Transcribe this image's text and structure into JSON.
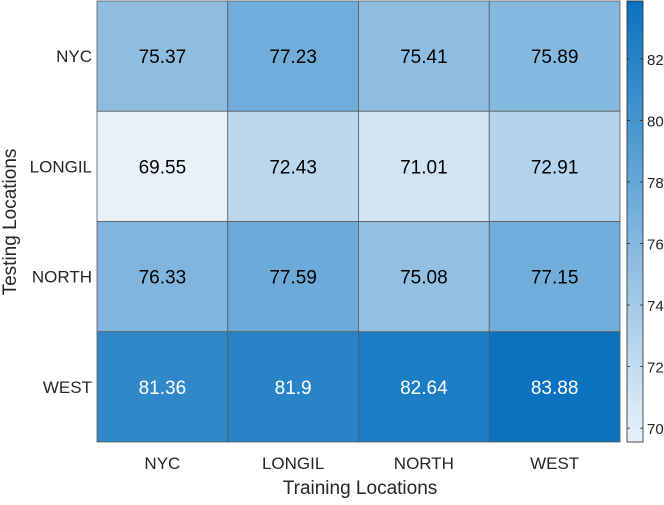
{
  "chart_data": {
    "type": "heatmap",
    "x_categories": [
      "NYC",
      "LONGIL",
      "NORTH",
      "WEST"
    ],
    "y_categories": [
      "NYC",
      "LONGIL",
      "NORTH",
      "WEST"
    ],
    "values": [
      [
        75.37,
        77.23,
        75.41,
        75.89
      ],
      [
        69.55,
        72.43,
        71.01,
        72.91
      ],
      [
        76.33,
        77.59,
        75.08,
        77.15
      ],
      [
        81.36,
        81.9,
        82.64,
        83.88
      ]
    ],
    "cell_labels": [
      [
        "75.37",
        "77.23",
        "75.41",
        "75.89"
      ],
      [
        "69.55",
        "72.43",
        "71.01",
        "72.91"
      ],
      [
        "76.33",
        "77.59",
        "75.08",
        "77.15"
      ],
      [
        "81.36",
        "81.9",
        "82.64",
        "83.88"
      ]
    ],
    "xlabel": "Training Locations",
    "ylabel": "Testing Locations",
    "colorbar": {
      "range": [
        69.55,
        83.88
      ],
      "ticks": [
        70,
        72,
        74,
        76,
        78,
        80,
        82
      ],
      "tick_labels": [
        "70",
        "72",
        "74",
        "76",
        "78",
        "80",
        "82"
      ]
    },
    "colormap": {
      "low": "#e8f1fa",
      "high": "#0a72bf"
    },
    "text_colors": {
      "dark": "#000000",
      "light": "#ffffff"
    },
    "light_text_threshold": 80,
    "grid_line_color": "#5a5a5a"
  }
}
